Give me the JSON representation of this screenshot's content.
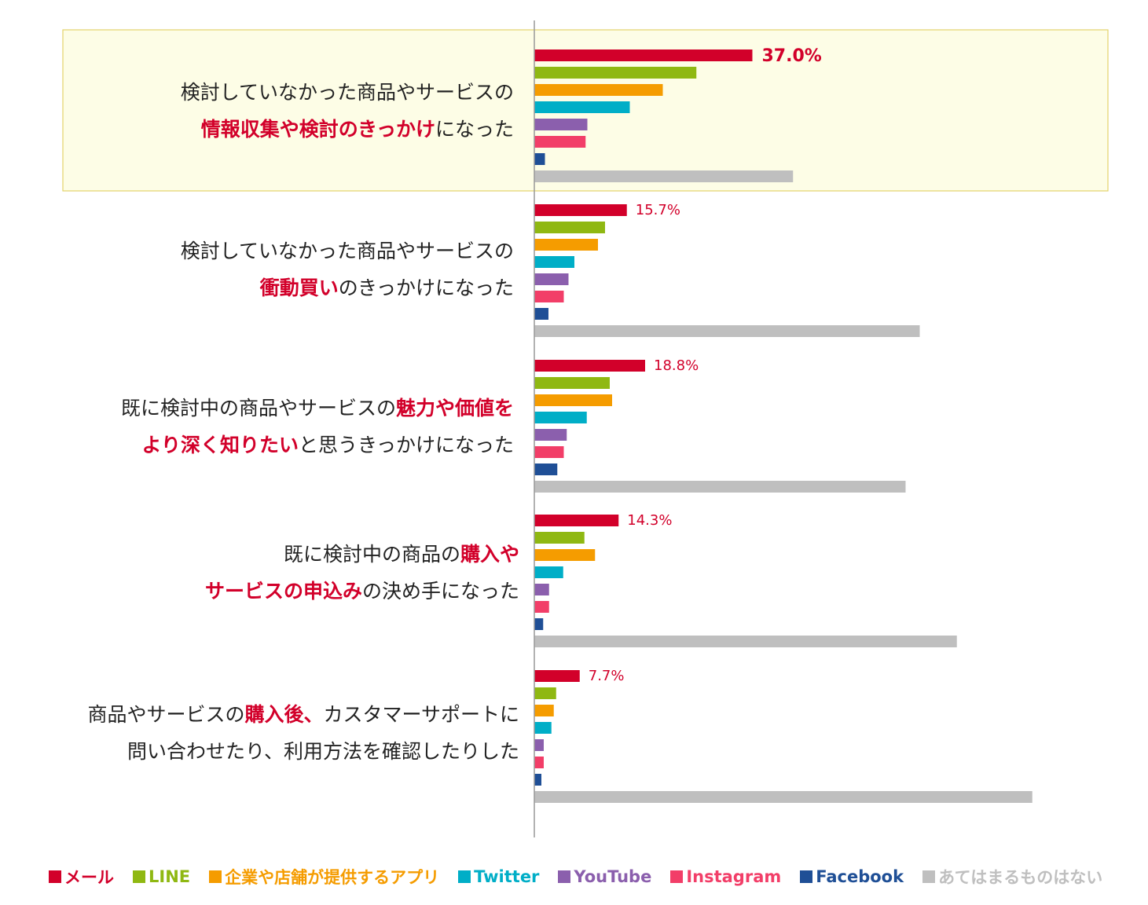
{
  "chart_data": {
    "type": "bar",
    "orientation": "horizontal",
    "highlight_category_index": 0,
    "highlight_color": "#fdfde6",
    "highlight_border": "#e3d36a",
    "categories": [
      {
        "lines": [
          [
            {
              "text": "検討していなかった商品やサービスの",
              "hl": false
            }
          ],
          [
            {
              "text": "情報収集や検討のきっかけ",
              "hl": true
            },
            {
              "text": "になった",
              "hl": false
            }
          ]
        ]
      },
      {
        "lines": [
          [
            {
              "text": "検討していなかった商品やサービスの",
              "hl": false
            }
          ],
          [
            {
              "text": "衝動買い",
              "hl": true
            },
            {
              "text": "のきっかけになった",
              "hl": false
            }
          ]
        ]
      },
      {
        "lines": [
          [
            {
              "text": "既に検討中の商品やサービスの",
              "hl": false
            },
            {
              "text": "魅力や価値を",
              "hl": true
            }
          ],
          [
            {
              "text": "より深く知りたい",
              "hl": true
            },
            {
              "text": "と思うきっかけになった",
              "hl": false
            }
          ]
        ]
      },
      {
        "lines": [
          [
            {
              "text": "既に検討中の商品の",
              "hl": false
            },
            {
              "text": "購入や",
              "hl": true
            }
          ],
          [
            {
              "text": "サービスの申込み",
              "hl": true
            },
            {
              "text": "の決め手になった",
              "hl": false
            }
          ]
        ]
      },
      {
        "lines": [
          [
            {
              "text": "商品やサービスの",
              "hl": false
            },
            {
              "text": "購入後、",
              "hl": true
            },
            {
              "text": "カスタマーサポートに",
              "hl": false
            }
          ],
          [
            {
              "text": "問い合わせたり、利用方法を確認したりした",
              "hl": false
            }
          ]
        ]
      }
    ],
    "series": [
      {
        "name": "メール",
        "color": "#d2002a",
        "values": [
          37.0,
          15.7,
          18.8,
          14.3,
          7.7
        ],
        "labels": [
          "37.0%",
          "15.7%",
          "18.8%",
          "14.3%",
          "7.7%"
        ]
      },
      {
        "name": "LINE",
        "color": "#8fb812",
        "values": [
          27.5,
          12.0,
          12.8,
          8.5,
          3.7
        ]
      },
      {
        "name": "企業や店舗が提供するアプリ",
        "color": "#f59c00",
        "values": [
          21.8,
          10.8,
          13.2,
          10.3,
          3.3
        ]
      },
      {
        "name": "Twitter",
        "color": "#00aec7",
        "values": [
          16.2,
          6.8,
          8.9,
          4.9,
          2.9
        ]
      },
      {
        "name": "YouTube",
        "color": "#8b5fad",
        "values": [
          9.0,
          5.8,
          5.5,
          2.5,
          1.6
        ]
      },
      {
        "name": "Instagram",
        "color": "#f23e68",
        "values": [
          8.7,
          5.0,
          5.0,
          2.5,
          1.6
        ]
      },
      {
        "name": "Facebook",
        "color": "#1f4f96",
        "values": [
          1.8,
          2.4,
          3.9,
          1.5,
          1.2
        ]
      },
      {
        "name": "あてはまるものはない",
        "color": "#bfbfbf",
        "values": [
          43.9,
          65.4,
          63.0,
          71.7,
          84.5
        ]
      }
    ],
    "xlim": [
      0,
      100
    ],
    "grid": false,
    "legend_position": "bottom"
  }
}
